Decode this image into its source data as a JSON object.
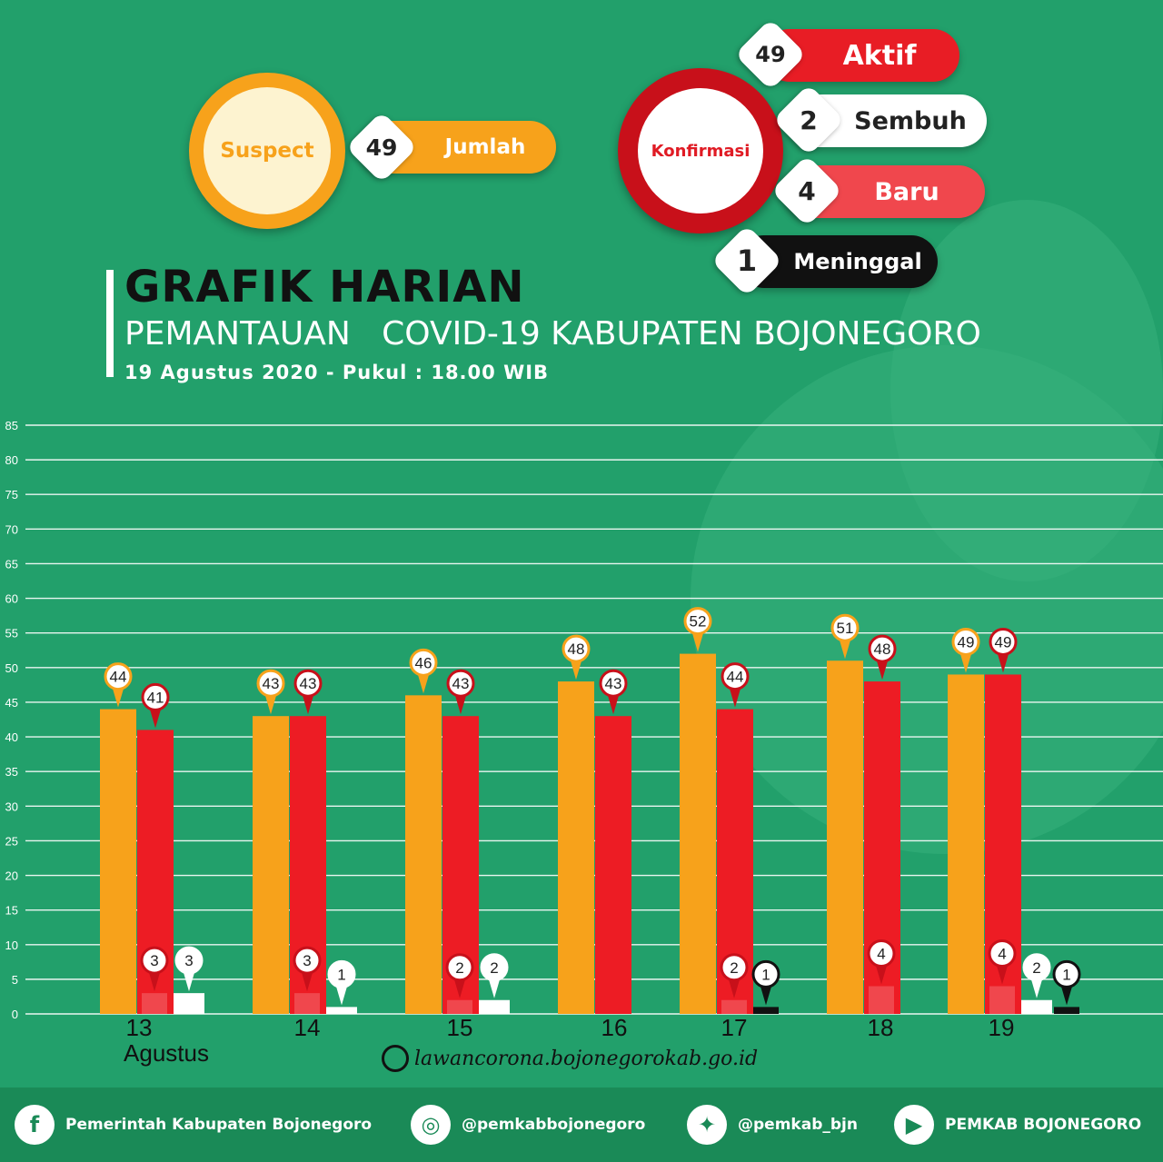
{
  "suspect": {
    "label": "Suspect",
    "count": "49",
    "count_label": "Jumlah"
  },
  "konfirmasi": {
    "label": "Konfirmasi",
    "aktif": {
      "count": "49",
      "label": "Aktif"
    },
    "sembuh": {
      "count": "2",
      "label": "Sembuh"
    },
    "baru": {
      "count": "4",
      "label": "Baru"
    },
    "meninggal": {
      "count": "1",
      "label": "Meninggal"
    }
  },
  "header": {
    "title": "GRAFIK HARIAN",
    "subtitle": "PEMANTAUAN   COVID-19 KABUPATEN BOJONEGORO",
    "date": "19 Agustus 2020 - Pukul : 18.00 WIB"
  },
  "website": "lawancorona.bojonegorokab.go.id",
  "footer": {
    "facebook": "Pemerintah Kabupaten Bojonegoro",
    "instagram": "@pemkabbojonegoro",
    "twitter": "@pemkab_bjn",
    "youtube": "PEMKAB BOJONEGORO"
  },
  "colors": {
    "background": "#22a06b",
    "suspect": "#f7a21b",
    "aktif": "#ed1c24",
    "baru": "#f0474d",
    "sembuh": "#ffffff",
    "meninggal": "#111111"
  },
  "chart_data": {
    "type": "bar",
    "categories": [
      "13",
      "14",
      "15",
      "16",
      "17",
      "18",
      "19"
    ],
    "category_sublabel": "Agustus",
    "ylim": [
      0,
      85
    ],
    "yticks": [
      0,
      5,
      10,
      15,
      20,
      25,
      30,
      35,
      40,
      45,
      50,
      55,
      60,
      65,
      70,
      75,
      80,
      85
    ],
    "grid": true,
    "series": [
      {
        "key": "suspect",
        "values": [
          44,
          43,
          46,
          48,
          52,
          51,
          49
        ]
      },
      {
        "key": "aktif",
        "values": [
          41,
          43,
          43,
          43,
          44,
          48,
          49
        ]
      },
      {
        "key": "baru",
        "values": [
          3,
          3,
          2,
          null,
          2,
          4,
          4
        ]
      },
      {
        "key": "sembuh",
        "values": [
          3,
          1,
          2,
          null,
          null,
          null,
          2
        ]
      },
      {
        "key": "meninggal",
        "values": [
          null,
          null,
          null,
          null,
          1,
          null,
          1
        ]
      }
    ]
  }
}
